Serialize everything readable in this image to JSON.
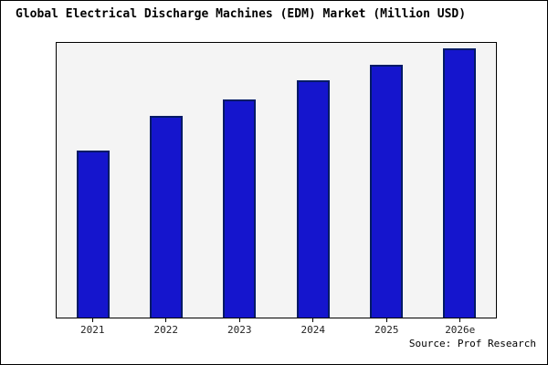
{
  "page": {
    "title": "Global Electrical Discharge Machines (EDM) Market (Million USD)",
    "source": "Source: Prof Research"
  },
  "colors": {
    "bar_fill": "#1515cd",
    "bar_border": "#001a66",
    "plot_bg": "#f4f4f4",
    "frame": "#000000"
  },
  "chart_data": {
    "type": "bar",
    "title": "Global Electrical Discharge Machines (EDM) Market (Million USD)",
    "categories": [
      "2021",
      "2022",
      "2023",
      "2024",
      "2025",
      "2026e"
    ],
    "values": [
      62,
      75,
      81,
      88,
      94,
      100
    ],
    "xlabel": "",
    "ylabel": "",
    "ylim": [
      0,
      102
    ],
    "grid": false,
    "legend": "none",
    "annotation": "Source: Prof Research"
  }
}
